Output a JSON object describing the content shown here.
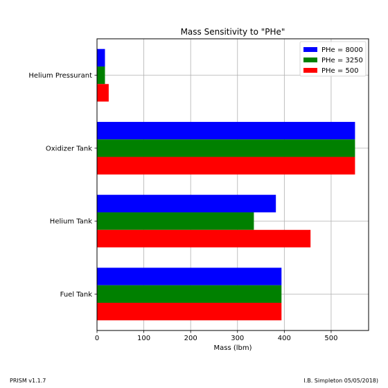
{
  "chart_data": {
    "type": "bar",
    "orientation": "horizontal",
    "title": "Mass Sensitivity to \"PHe\"",
    "xlabel": "Mass (lbm)",
    "ylabel": "",
    "categories": [
      "Helium Pressurant",
      "Oxidizer Tank",
      "Helium Tank",
      "Fuel Tank"
    ],
    "series": [
      {
        "name": "PHe = 8000",
        "color": "#0000ff",
        "values": [
          17,
          551,
          382,
          394
        ]
      },
      {
        "name": "PHe = 3250",
        "color": "#008000",
        "values": [
          17,
          551,
          335,
          394
        ]
      },
      {
        "name": "PHe = 500",
        "color": "#ff0000",
        "values": [
          25,
          551,
          456,
          394
        ]
      }
    ],
    "xlim": [
      0,
      580
    ],
    "xticks": [
      0,
      100,
      200,
      300,
      400,
      500
    ],
    "grid": true,
    "legend_position": "top-right"
  },
  "footer": {
    "left": "PRISM v1.1.7",
    "right": "I.B. Simpleton 05/05/2018)"
  }
}
